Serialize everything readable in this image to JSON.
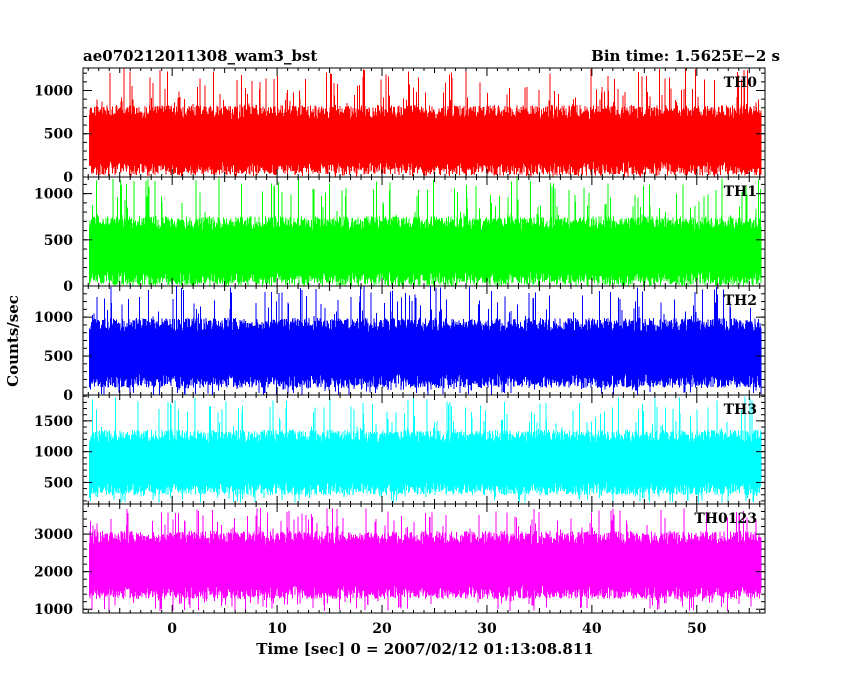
{
  "chart_data": {
    "type": "line",
    "title_left": "ae070212011308_wam3_bst",
    "title_right": "Bin time: 1.5625E−2 s",
    "xlabel": "Time [sec] 0 = 2007/02/12 01:13:08.811",
    "ylabel": "Counts/sec",
    "xlim": [
      -8.5,
      56.5
    ],
    "x_ticks": [
      0,
      10,
      20,
      30,
      40,
      50
    ],
    "x_data_range": [
      -7.9,
      56.1
    ],
    "grid": false,
    "panels": [
      {
        "name": "TH0",
        "color": "#ff0000",
        "ylim": [
          0,
          1260
        ],
        "y_ticks": [
          0,
          500,
          1000
        ],
        "band_low": 100,
        "band_high": 750,
        "spike_low": 0,
        "spike_high": 1260
      },
      {
        "name": "TH1",
        "color": "#00ff00",
        "ylim": [
          0,
          1180
        ],
        "y_ticks": [
          0,
          500,
          1000
        ],
        "band_low": 80,
        "band_high": 680,
        "spike_low": 0,
        "spike_high": 1180
      },
      {
        "name": "TH2",
        "color": "#0000ff",
        "ylim": [
          0,
          1400
        ],
        "y_ticks": [
          0,
          500,
          1000
        ],
        "band_low": 180,
        "band_high": 900,
        "spike_low": 0,
        "spike_high": 1400
      },
      {
        "name": "TH3",
        "color": "#00ffff",
        "ylim": [
          150,
          1920
        ],
        "y_ticks": [
          500,
          1000,
          1500
        ],
        "band_low": 400,
        "band_high": 1250,
        "spike_low": 170,
        "spike_high": 1900
      },
      {
        "name": "TH0123",
        "color": "#ff00ff",
        "ylim": [
          900,
          3800
        ],
        "y_ticks": [
          1000,
          2000,
          3000
        ],
        "band_low": 1450,
        "band_high": 2900,
        "spike_low": 950,
        "spike_high": 3700
      }
    ]
  }
}
